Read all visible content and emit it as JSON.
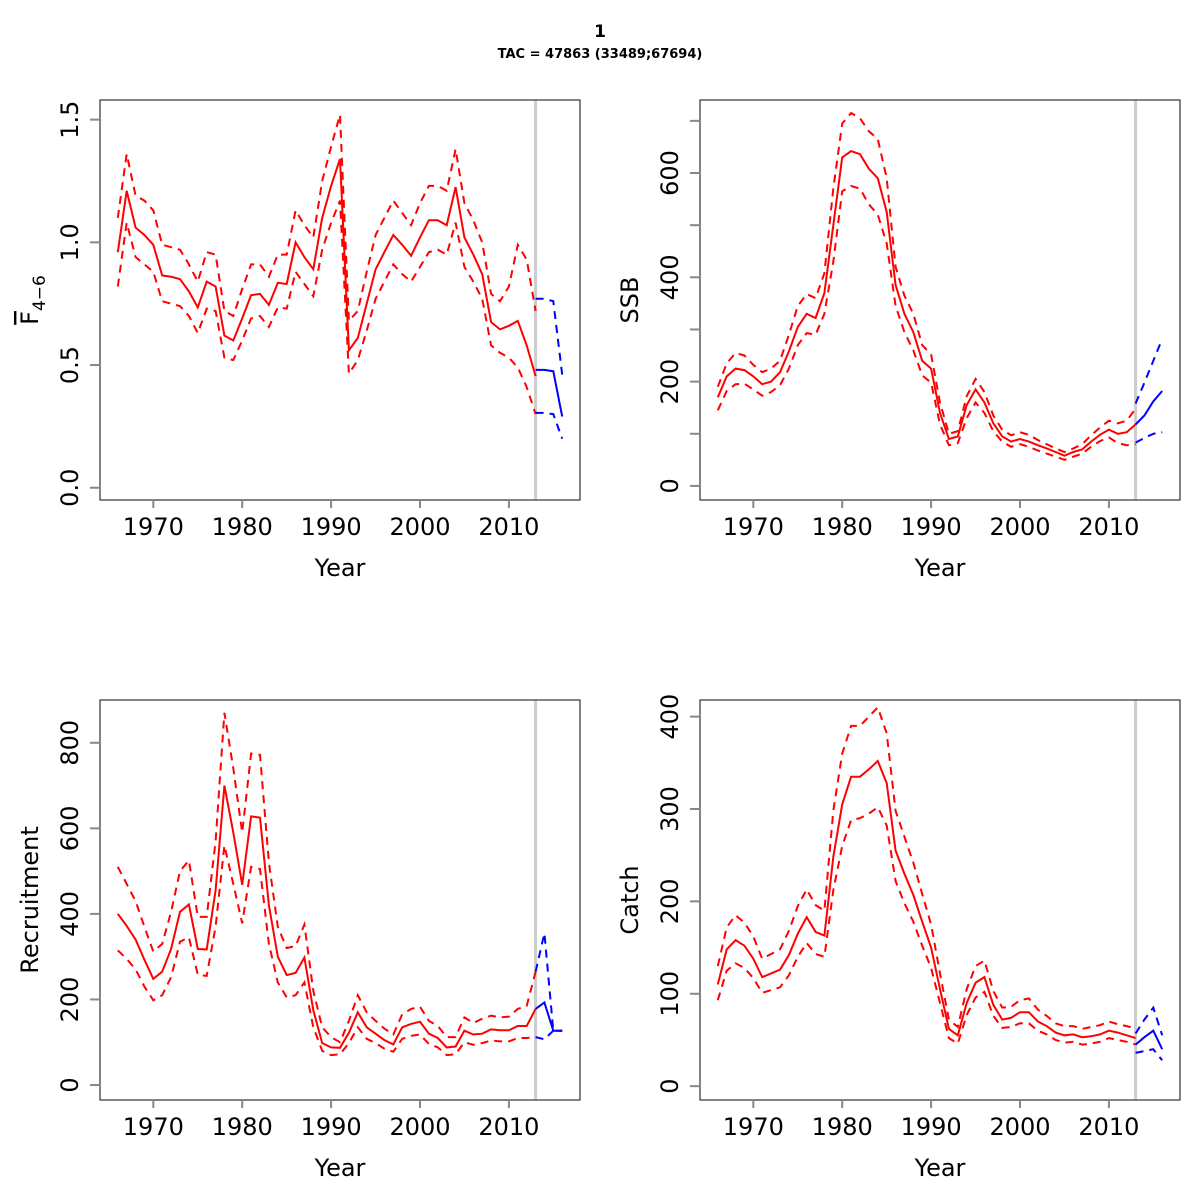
{
  "title": "1",
  "subtitle": "TAC = 47863 (33489;67694)",
  "colors": {
    "hist": "#ff0000",
    "forecast": "#0000ff",
    "divider": "#cccccc",
    "axis": "#000000"
  },
  "chart_data": [
    {
      "type": "line",
      "name": "fbar",
      "ylabel_main": "F",
      "ylabel_sub": "4−6",
      "xlabel": "Year",
      "xlim": [
        1964,
        2018
      ],
      "ylim": [
        -0.05,
        1.58
      ],
      "xticks": [
        "1970",
        "1980",
        "1990",
        "2000",
        "2010"
      ],
      "yticks": [
        "0.0",
        "0.5",
        "1.0",
        "1.5"
      ],
      "ytick_values": [
        0,
        0.5,
        1.0,
        1.5
      ],
      "divider_year": 2013,
      "x": [
        1966,
        1967,
        1968,
        1969,
        1970,
        1971,
        1972,
        1973,
        1974,
        1975,
        1976,
        1977,
        1978,
        1979,
        1980,
        1981,
        1982,
        1983,
        1984,
        1985,
        1986,
        1987,
        1988,
        1989,
        1990,
        1991,
        1992,
        1993,
        1994,
        1995,
        1996,
        1997,
        1998,
        1999,
        2000,
        2001,
        2002,
        2003,
        2004,
        2005,
        2006,
        2007,
        2008,
        2009,
        2010,
        2011,
        2012,
        2013
      ],
      "series": [
        {
          "name": "estimate",
          "style": "solid",
          "values": [
            0.96,
            1.21,
            1.06,
            1.03,
            0.99,
            0.865,
            0.86,
            0.85,
            0.8,
            0.735,
            0.84,
            0.82,
            0.62,
            0.6,
            0.69,
            0.785,
            0.79,
            0.745,
            0.835,
            0.83,
            1.0,
            0.94,
            0.89,
            1.1,
            1.23,
            1.34,
            0.56,
            0.61,
            0.75,
            0.89,
            0.96,
            1.03,
            0.99,
            0.945,
            1.02,
            1.09,
            1.09,
            1.07,
            1.225,
            1.02,
            0.95,
            0.87,
            0.675,
            0.645,
            0.66,
            0.68,
            0.58,
            0.455
          ]
        },
        {
          "name": "upper",
          "style": "dashed",
          "values": [
            1.1,
            1.36,
            1.19,
            1.17,
            1.13,
            0.99,
            0.98,
            0.97,
            0.91,
            0.84,
            0.96,
            0.95,
            0.72,
            0.7,
            0.81,
            0.91,
            0.91,
            0.86,
            0.95,
            0.95,
            1.13,
            1.07,
            1.02,
            1.25,
            1.39,
            1.52,
            0.68,
            0.72,
            0.88,
            1.03,
            1.1,
            1.17,
            1.12,
            1.07,
            1.16,
            1.23,
            1.23,
            1.21,
            1.38,
            1.16,
            1.09,
            1.0,
            0.79,
            0.76,
            0.82,
            0.99,
            0.93,
            0.72
          ]
        },
        {
          "name": "lower",
          "style": "dashed",
          "values": [
            0.82,
            1.08,
            0.94,
            0.91,
            0.88,
            0.76,
            0.75,
            0.74,
            0.7,
            0.63,
            0.73,
            0.72,
            0.53,
            0.52,
            0.6,
            0.69,
            0.7,
            0.655,
            0.735,
            0.73,
            0.88,
            0.83,
            0.78,
            0.97,
            1.08,
            1.17,
            0.465,
            0.52,
            0.64,
            0.77,
            0.84,
            0.91,
            0.87,
            0.84,
            0.9,
            0.96,
            0.97,
            0.95,
            1.08,
            0.9,
            0.84,
            0.77,
            0.58,
            0.55,
            0.53,
            0.49,
            0.41,
            0.3
          ]
        }
      ],
      "forecast_x": [
        2013,
        2014,
        2015,
        2016
      ],
      "forecast": [
        {
          "name": "estimate",
          "style": "solid",
          "values": [
            0.48,
            0.48,
            0.475,
            0.29
          ]
        },
        {
          "name": "upper",
          "style": "dashed",
          "values": [
            0.77,
            0.77,
            0.76,
            0.46
          ]
        },
        {
          "name": "lower",
          "style": "dashed",
          "values": [
            0.305,
            0.305,
            0.3,
            0.2
          ]
        }
      ]
    },
    {
      "type": "line",
      "name": "ssb",
      "ylabel_main": "SSB",
      "ylabel_sub": "",
      "xlabel": "Year",
      "xlim": [
        1964,
        2018
      ],
      "ylim": [
        -27,
        740
      ],
      "xticks": [
        "1970",
        "1980",
        "1990",
        "2000",
        "2010"
      ],
      "yticks": [
        "0",
        "",
        "200",
        "",
        "400",
        "",
        "600",
        ""
      ],
      "ytick_values": [
        0,
        100,
        200,
        300,
        400,
        500,
        600,
        700
      ],
      "divider_year": 2013,
      "x": [
        1966,
        1967,
        1968,
        1969,
        1970,
        1971,
        1972,
        1973,
        1974,
        1975,
        1976,
        1977,
        1978,
        1979,
        1980,
        1981,
        1982,
        1983,
        1984,
        1985,
        1986,
        1987,
        1988,
        1989,
        1990,
        1991,
        1992,
        1993,
        1994,
        1995,
        1996,
        1997,
        1998,
        1999,
        2000,
        2001,
        2002,
        2003,
        2004,
        2005,
        2006,
        2007,
        2008,
        2009,
        2010,
        2011,
        2012,
        2013
      ],
      "series": [
        {
          "name": "estimate",
          "style": "solid",
          "values": [
            170,
            210,
            225,
            222,
            210,
            195,
            200,
            218,
            258,
            305,
            330,
            322,
            370,
            500,
            630,
            642,
            636,
            608,
            590,
            525,
            385,
            330,
            295,
            240,
            225,
            140,
            90,
            95,
            155,
            185,
            160,
            120,
            95,
            85,
            90,
            85,
            78,
            72,
            65,
            58,
            65,
            70,
            85,
            98,
            108,
            100,
            103,
            118
          ]
        },
        {
          "name": "upper",
          "style": "dashed",
          "values": [
            190,
            235,
            255,
            250,
            232,
            218,
            225,
            240,
            290,
            345,
            368,
            360,
            408,
            570,
            695,
            715,
            705,
            680,
            665,
            590,
            420,
            365,
            330,
            270,
            252,
            160,
            100,
            105,
            172,
            205,
            180,
            135,
            108,
            97,
            103,
            98,
            88,
            80,
            72,
            65,
            72,
            80,
            97,
            112,
            125,
            120,
            125,
            148
          ]
        },
        {
          "name": "lower",
          "style": "dashed",
          "values": [
            145,
            182,
            195,
            196,
            185,
            173,
            180,
            193,
            225,
            270,
            293,
            290,
            330,
            430,
            565,
            575,
            570,
            540,
            520,
            465,
            345,
            295,
            260,
            212,
            198,
            118,
            78,
            82,
            130,
            160,
            140,
            105,
            85,
            75,
            80,
            75,
            68,
            62,
            56,
            50,
            56,
            62,
            75,
            86,
            93,
            82,
            78,
            80
          ]
        }
      ],
      "forecast_x": [
        2013,
        2014,
        2015,
        2016
      ],
      "forecast": [
        {
          "name": "estimate",
          "style": "solid",
          "values": [
            118,
            135,
            162,
            182
          ]
        },
        {
          "name": "upper",
          "style": "dashed",
          "values": [
            158,
            198,
            240,
            282
          ]
        },
        {
          "name": "lower",
          "style": "dashed",
          "values": [
            83,
            92,
            100,
            103
          ]
        }
      ]
    },
    {
      "type": "line",
      "name": "recruitment",
      "ylabel_main": "Recruitment",
      "ylabel_sub": "",
      "xlabel": "Year",
      "xlim": [
        1964,
        2018
      ],
      "ylim": [
        -35,
        900
      ],
      "xticks": [
        "1970",
        "1980",
        "1990",
        "2000",
        "2010"
      ],
      "yticks": [
        "0",
        "200",
        "400",
        "600",
        "800"
      ],
      "ytick_values": [
        0,
        200,
        400,
        600,
        800
      ],
      "divider_year": 2013,
      "x": [
        1966,
        1967,
        1968,
        1969,
        1970,
        1971,
        1972,
        1973,
        1974,
        1975,
        1976,
        1977,
        1978,
        1979,
        1980,
        1981,
        1982,
        1983,
        1984,
        1985,
        1986,
        1987,
        1988,
        1989,
        1990,
        1991,
        1992,
        1993,
        1994,
        1995,
        1996,
        1997,
        1998,
        1999,
        2000,
        2001,
        2002,
        2003,
        2004,
        2005,
        2006,
        2007,
        2008,
        2009,
        2010,
        2011,
        2012,
        2013
      ],
      "series": [
        {
          "name": "estimate",
          "style": "solid",
          "values": [
            400,
            372,
            340,
            293,
            248,
            265,
            318,
            405,
            422,
            318,
            317,
            455,
            700,
            590,
            468,
            628,
            625,
            420,
            300,
            257,
            262,
            298,
            175,
            98,
            88,
            87,
            122,
            170,
            135,
            120,
            105,
            95,
            135,
            143,
            148,
            120,
            110,
            88,
            90,
            127,
            118,
            120,
            130,
            128,
            128,
            138,
            138,
            178
          ]
        },
        {
          "name": "upper",
          "style": "dashed",
          "values": [
            510,
            470,
            430,
            370,
            312,
            330,
            405,
            500,
            525,
            393,
            393,
            570,
            870,
            740,
            590,
            775,
            772,
            520,
            370,
            320,
            325,
            375,
            220,
            135,
            112,
            100,
            150,
            210,
            170,
            150,
            132,
            118,
            165,
            178,
            183,
            150,
            138,
            112,
            112,
            158,
            145,
            155,
            162,
            158,
            160,
            178,
            185,
            265
          ]
        },
        {
          "name": "lower",
          "style": "dashed",
          "values": [
            315,
            295,
            270,
            230,
            198,
            210,
            252,
            335,
            345,
            258,
            255,
            370,
            560,
            470,
            378,
            510,
            505,
            330,
            240,
            205,
            210,
            240,
            135,
            80,
            70,
            72,
            98,
            135,
            108,
            98,
            85,
            78,
            108,
            115,
            118,
            96,
            88,
            70,
            72,
            100,
            94,
            98,
            104,
            102,
            102,
            110,
            110,
            112
          ]
        }
      ],
      "forecast_x": [
        2013,
        2014,
        2015,
        2016
      ],
      "forecast": [
        {
          "name": "estimate",
          "style": "solid",
          "values": [
            178,
            193,
            127,
            127
          ]
        },
        {
          "name": "upper",
          "style": "dashed",
          "values": [
            265,
            355,
            127,
            127
          ]
        },
        {
          "name": "lower",
          "style": "dashed",
          "values": [
            112,
            107,
            127,
            127
          ]
        }
      ]
    },
    {
      "type": "line",
      "name": "catch",
      "ylabel_main": "Catch",
      "ylabel_sub": "",
      "xlabel": "Year",
      "xlim": [
        1964,
        2018
      ],
      "ylim": [
        -15,
        418
      ],
      "xticks": [
        "1970",
        "1980",
        "1990",
        "2000",
        "2010"
      ],
      "yticks": [
        "0",
        "100",
        "200",
        "300",
        "400"
      ],
      "ytick_values": [
        0,
        100,
        200,
        300,
        400
      ],
      "divider_year": 2013,
      "x": [
        1966,
        1967,
        1968,
        1969,
        1970,
        1971,
        1972,
        1973,
        1974,
        1975,
        1976,
        1977,
        1978,
        1979,
        1980,
        1981,
        1982,
        1983,
        1984,
        1985,
        1986,
        1987,
        1988,
        1989,
        1990,
        1991,
        1992,
        1993,
        1994,
        1995,
        1996,
        1997,
        1998,
        1999,
        2000,
        2001,
        2002,
        2003,
        2004,
        2005,
        2006,
        2007,
        2008,
        2009,
        2010,
        2011,
        2012,
        2013
      ],
      "series": [
        {
          "name": "estimate",
          "style": "solid",
          "values": [
            110,
            148,
            158,
            152,
            138,
            118,
            122,
            126,
            142,
            165,
            183,
            167,
            163,
            248,
            305,
            335,
            335,
            343,
            352,
            328,
            255,
            230,
            207,
            178,
            150,
            105,
            62,
            55,
            90,
            112,
            118,
            88,
            72,
            74,
            80,
            80,
            70,
            65,
            58,
            55,
            56,
            53,
            54,
            56,
            60,
            58,
            55,
            52
          ]
        },
        {
          "name": "upper",
          "style": "dashed",
          "values": [
            130,
            172,
            185,
            177,
            162,
            138,
            143,
            148,
            168,
            195,
            213,
            196,
            190,
            298,
            360,
            390,
            390,
            400,
            410,
            382,
            298,
            270,
            242,
            208,
            175,
            122,
            72,
            64,
            105,
            130,
            136,
            103,
            85,
            86,
            93,
            95,
            83,
            76,
            68,
            65,
            65,
            62,
            64,
            66,
            70,
            67,
            65,
            62
          ]
        },
        {
          "name": "lower",
          "style": "dashed",
          "values": [
            93,
            125,
            133,
            128,
            117,
            101,
            104,
            107,
            120,
            140,
            155,
            143,
            140,
            212,
            260,
            288,
            290,
            295,
            302,
            282,
            222,
            198,
            178,
            152,
            128,
            90,
            52,
            46,
            77,
            96,
            102,
            76,
            63,
            64,
            68,
            68,
            60,
            56,
            50,
            47,
            48,
            45,
            46,
            48,
            52,
            50,
            48,
            45
          ]
        }
      ],
      "forecast_x": [
        2013,
        2014,
        2015,
        2016
      ],
      "forecast": [
        {
          "name": "estimate",
          "style": "solid",
          "values": [
            45,
            53,
            60,
            40
          ]
        },
        {
          "name": "upper",
          "style": "dashed",
          "values": [
            57,
            72,
            85,
            55
          ]
        },
        {
          "name": "lower",
          "style": "dashed",
          "values": [
            36,
            38,
            40,
            28
          ]
        }
      ]
    }
  ]
}
